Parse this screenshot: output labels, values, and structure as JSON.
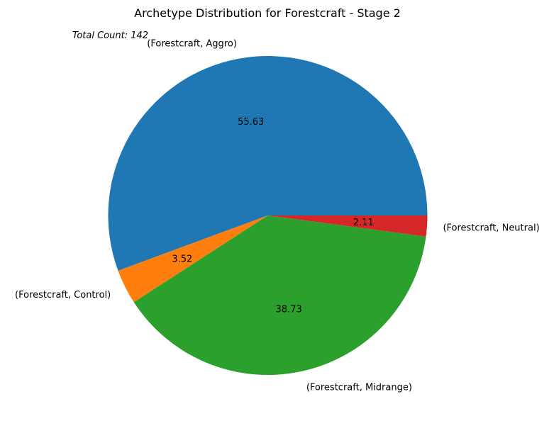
{
  "chart_data": {
    "type": "pie",
    "title": "Archetype Distribution for Forestcraft - Stage 2",
    "annotation": "Total Count: 142",
    "categories": [
      "(Forestcraft, Aggro)",
      "(Forestcraft, Control)",
      "(Forestcraft, Midrange)",
      "(Forestcraft, Neutral)"
    ],
    "values": [
      55.63,
      3.52,
      38.73,
      2.11
    ],
    "value_labels": [
      "55.63",
      "3.52",
      "38.73",
      "2.11"
    ],
    "colors": [
      "#1f77b4",
      "#ff7f0e",
      "#2ca02c",
      "#d62728"
    ],
    "start_angle_deg": 0,
    "direction": "counterclockwise",
    "legend": "none"
  }
}
